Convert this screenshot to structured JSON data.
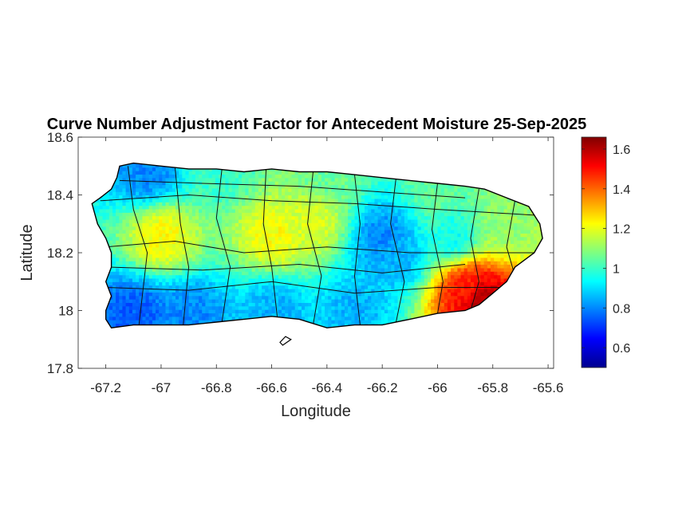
{
  "title": "Curve Number Adjustment Factor for Antecedent Moisture 25-Sep-2025",
  "map": {
    "region": "Puerto Rico",
    "xlabel": "Longitude",
    "ylabel": "Latitude",
    "xlim": [
      -67.3,
      -65.58
    ],
    "ylim": [
      17.8,
      18.6
    ],
    "xticks": [
      -67.2,
      -67,
      -66.8,
      -66.6,
      -66.4,
      -66.2,
      -66,
      -65.8,
      -65.6
    ],
    "xtick_labels": [
      "-67.2",
      "-67",
      "-66.8",
      "-66.6",
      "-66.4",
      "-66.2",
      "-66",
      "-65.8",
      "-65.6"
    ],
    "yticks": [
      17.8,
      18,
      18.2,
      18.4,
      18.6
    ],
    "ytick_labels": [
      "17.8",
      "18",
      "18.2",
      "18.4",
      "18.6"
    ],
    "outline": [
      [
        -67.25,
        18.37
      ],
      [
        -67.22,
        18.39
      ],
      [
        -67.18,
        18.42
      ],
      [
        -67.16,
        18.46
      ],
      [
        -67.15,
        18.5
      ],
      [
        -67.1,
        18.51
      ],
      [
        -67.0,
        18.5
      ],
      [
        -66.9,
        18.49
      ],
      [
        -66.8,
        18.49
      ],
      [
        -66.7,
        18.48
      ],
      [
        -66.6,
        18.49
      ],
      [
        -66.5,
        18.48
      ],
      [
        -66.4,
        18.48
      ],
      [
        -66.3,
        18.47
      ],
      [
        -66.2,
        18.46
      ],
      [
        -66.1,
        18.45
      ],
      [
        -66.0,
        18.44
      ],
      [
        -65.9,
        18.43
      ],
      [
        -65.83,
        18.42
      ],
      [
        -65.75,
        18.39
      ],
      [
        -65.67,
        18.36
      ],
      [
        -65.63,
        18.3
      ],
      [
        -65.62,
        18.25
      ],
      [
        -65.65,
        18.2
      ],
      [
        -65.72,
        18.15
      ],
      [
        -65.75,
        18.1
      ],
      [
        -65.8,
        18.06
      ],
      [
        -65.85,
        18.02
      ],
      [
        -65.9,
        18.0
      ],
      [
        -66.0,
        17.99
      ],
      [
        -66.1,
        17.97
      ],
      [
        -66.2,
        17.95
      ],
      [
        -66.3,
        17.95
      ],
      [
        -66.4,
        17.94
      ],
      [
        -66.5,
        17.97
      ],
      [
        -66.6,
        17.98
      ],
      [
        -66.7,
        17.97
      ],
      [
        -66.8,
        17.96
      ],
      [
        -66.9,
        17.95
      ],
      [
        -67.0,
        17.95
      ],
      [
        -67.1,
        17.95
      ],
      [
        -67.18,
        17.94
      ],
      [
        -67.2,
        17.97
      ],
      [
        -67.2,
        18.0
      ],
      [
        -67.18,
        18.05
      ],
      [
        -67.2,
        18.1
      ],
      [
        -67.18,
        18.15
      ],
      [
        -67.18,
        18.2
      ],
      [
        -67.2,
        18.25
      ],
      [
        -67.23,
        18.3
      ],
      [
        -67.25,
        18.37
      ]
    ],
    "islets": [
      [
        [
          -66.56,
          17.88
        ],
        [
          -66.53,
          17.9
        ],
        [
          -66.55,
          17.91
        ],
        [
          -66.57,
          17.89
        ],
        [
          -66.56,
          17.88
        ]
      ]
    ]
  },
  "colorbar": {
    "min": 0.5,
    "max": 1.66,
    "ticks": [
      0.6,
      0.8,
      1,
      1.2,
      1.4,
      1.6
    ],
    "tick_labels": [
      "0.6",
      "0.8",
      "1",
      "1.2",
      "1.4",
      "1.6"
    ],
    "colormap": "jet"
  },
  "chart_data": {
    "type": "heatmap",
    "title": "Curve Number Adjustment Factor for Antecedent Moisture 25-Sep-2025",
    "xlabel": "Longitude",
    "ylabel": "Latitude",
    "xlim": [
      -67.3,
      -65.58
    ],
    "ylim": [
      17.8,
      18.6
    ],
    "value_range": [
      0.5,
      1.66
    ],
    "features": [
      {
        "lon": -67.0,
        "lat": 18.25,
        "value": 1.22
      },
      {
        "lon": -66.6,
        "lat": 18.25,
        "value": 1.22
      },
      {
        "lon": -66.45,
        "lat": 18.3,
        "value": 1.18
      },
      {
        "lon": -66.2,
        "lat": 18.25,
        "value": 0.8
      },
      {
        "lon": -66.15,
        "lat": 18.18,
        "value": 0.85
      },
      {
        "lon": -65.95,
        "lat": 18.25,
        "value": 0.95
      },
      {
        "lon": -65.75,
        "lat": 18.3,
        "value": 1.1
      },
      {
        "lon": -65.9,
        "lat": 18.07,
        "value": 1.48
      },
      {
        "lon": -65.85,
        "lat": 18.03,
        "value": 1.62
      },
      {
        "lon": -66.6,
        "lat": 18.0,
        "value": 0.85
      },
      {
        "lon": -66.9,
        "lat": 17.98,
        "value": 0.8
      },
      {
        "lon": -67.1,
        "lat": 17.98,
        "value": 0.75
      },
      {
        "lon": -66.3,
        "lat": 18.0,
        "value": 0.85
      },
      {
        "lon": -66.8,
        "lat": 18.48,
        "value": 1.0
      },
      {
        "lon": -67.05,
        "lat": 18.48,
        "value": 0.8
      },
      {
        "lon": -66.4,
        "lat": 18.47,
        "value": 1.05
      },
      {
        "lon": -66.0,
        "lat": 18.4,
        "value": 1.05
      }
    ]
  }
}
